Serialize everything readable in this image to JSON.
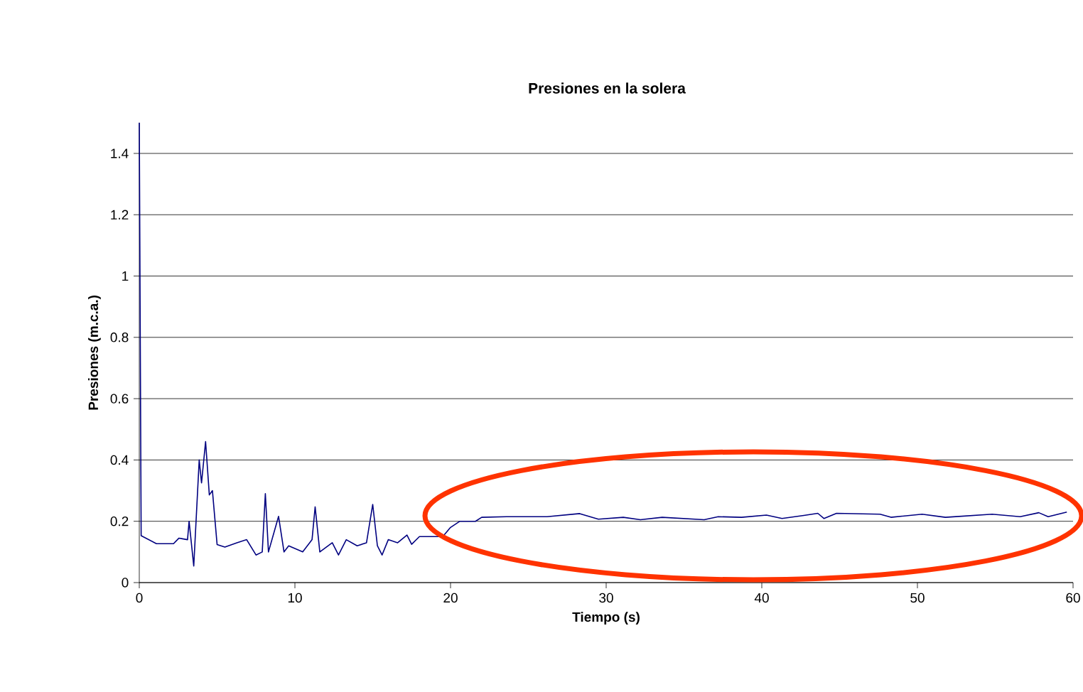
{
  "chart_data": {
    "type": "line",
    "title": "Presiones en la solera",
    "xlabel": "Tiempo (s)",
    "ylabel": "Presiones  (m.c.a.)",
    "xlim": [
      0,
      60
    ],
    "ylim": [
      0,
      1.5
    ],
    "xticks": [
      0,
      10,
      20,
      30,
      40,
      50,
      60
    ],
    "yticks": [
      0,
      0.2,
      0.4,
      0.6,
      0.8,
      1,
      1.2,
      1.4
    ],
    "grid": "y",
    "marker": "none",
    "line_style": "solid",
    "series": [
      {
        "color": "#000080",
        "x": [
          0,
          0.12,
          1.1,
          2.2,
          2.55,
          3.1,
          3.2,
          3.5,
          3.85,
          4.0,
          4.26,
          4.5,
          4.7,
          5.0,
          5.5,
          6.27,
          6.9,
          7.5,
          7.9,
          8.1,
          8.3,
          8.95,
          9.3,
          9.6,
          10.5,
          11.1,
          11.3,
          11.6,
          12.4,
          12.8,
          13.3,
          14.0,
          14.6,
          15.0,
          15.3,
          15.6,
          16.0,
          16.6,
          17.2,
          17.5,
          18.0,
          18.9,
          19.5,
          20.0,
          20.6,
          21.6,
          22.0,
          23.6,
          26.2,
          28.3,
          29.5,
          31.1,
          32.2,
          33.6,
          36.3,
          37.2,
          38.7,
          40.3,
          41.3,
          42.7,
          43.6,
          44.0,
          44.8,
          47.6,
          48.3,
          50.3,
          51.8,
          54.8,
          56.6,
          57.8,
          58.4,
          59.6
        ],
        "values": [
          1.5,
          0.153,
          0.127,
          0.127,
          0.145,
          0.14,
          0.2,
          0.054,
          0.4,
          0.325,
          0.46,
          0.286,
          0.3,
          0.124,
          0.116,
          0.13,
          0.14,
          0.09,
          0.1,
          0.29,
          0.1,
          0.216,
          0.1,
          0.12,
          0.1,
          0.14,
          0.247,
          0.1,
          0.13,
          0.09,
          0.14,
          0.12,
          0.13,
          0.255,
          0.12,
          0.09,
          0.14,
          0.13,
          0.155,
          0.125,
          0.15,
          0.15,
          0.15,
          0.18,
          0.2,
          0.2,
          0.213,
          0.215,
          0.215,
          0.225,
          0.207,
          0.213,
          0.205,
          0.213,
          0.205,
          0.215,
          0.213,
          0.22,
          0.209,
          0.219,
          0.226,
          0.209,
          0.226,
          0.223,
          0.213,
          0.223,
          0.213,
          0.223,
          0.215,
          0.228,
          0.215,
          0.23
        ]
      }
    ]
  }
}
